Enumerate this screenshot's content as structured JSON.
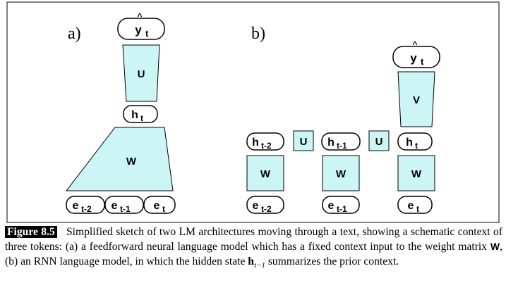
{
  "panel_a": {
    "label": "a)",
    "output": {
      "base": "y",
      "hat": "^",
      "sub": "t"
    },
    "u_label": "U",
    "hidden": {
      "base": "h",
      "sub": "t"
    },
    "w_label": "W",
    "inputs": [
      {
        "base": "e",
        "sub": "t-2"
      },
      {
        "base": "e",
        "sub": "t-1"
      },
      {
        "base": "e",
        "sub": "t"
      }
    ]
  },
  "panel_b": {
    "label": "b)",
    "output": {
      "base": "y",
      "hat": "^",
      "sub": "t"
    },
    "v_label": "V",
    "hiddens": [
      {
        "base": "h",
        "sub": "t-2"
      },
      {
        "base": "h",
        "sub": "t-1"
      },
      {
        "base": "h",
        "sub": "t"
      }
    ],
    "u_labels": [
      "U",
      "U"
    ],
    "w_labels": [
      "W",
      "W",
      "W"
    ],
    "inputs": [
      {
        "base": "e",
        "sub": "t-2"
      },
      {
        "base": "e",
        "sub": "t-1"
      },
      {
        "base": "e",
        "sub": "t"
      }
    ]
  },
  "caption": {
    "tag": "Figure 8.5",
    "text_1": "Simplified sketch of two LM architectures moving through a text, showing a schematic context of three tokens: (a) a feedforward neural language model which has a fixed context input to the weight matrix ",
    "w_symbol": "W",
    "text_2": ", (b) an RNN language model, in which the hidden state ",
    "h_symbol": "h",
    "h_sub": "t−1",
    "text_3": " summarizes the prior context."
  },
  "colors": {
    "fill": "#ccf6f6",
    "stroke": "#000000"
  }
}
